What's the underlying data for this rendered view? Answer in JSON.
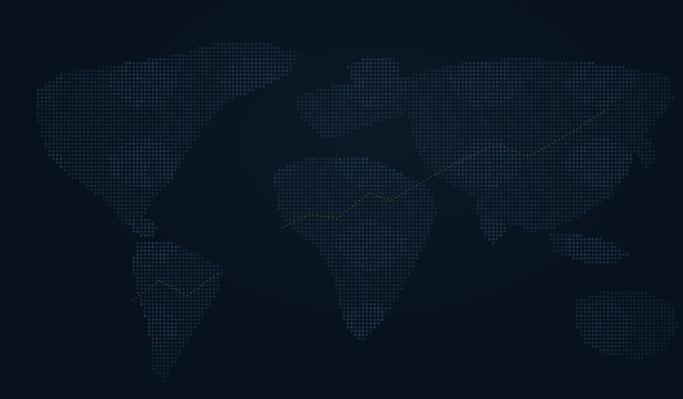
{
  "theme": {
    "background": "#07111d",
    "land_dot": "#1d3347",
    "land_dot_bright": "#264259",
    "route_dot": "#6b5a3a"
  },
  "map": {
    "style": "dotted world map",
    "routes": 2
  }
}
